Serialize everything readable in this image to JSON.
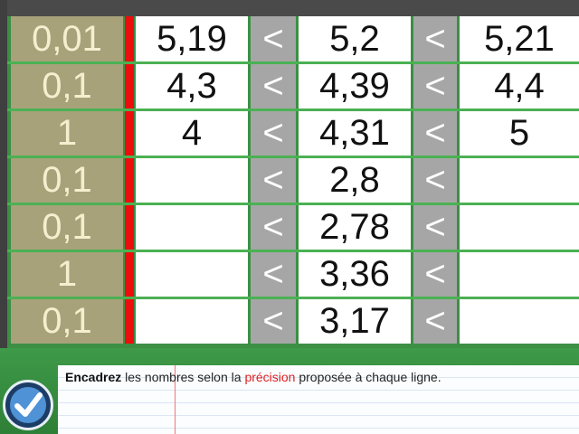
{
  "rows": [
    {
      "precision": "0,01",
      "left": "5,19",
      "less1": "<",
      "middle": "5,2",
      "less2": "<",
      "right": "5,21"
    },
    {
      "precision": "0,1",
      "left": "4,3",
      "less1": "<",
      "middle": "4,39",
      "less2": "<",
      "right": "4,4"
    },
    {
      "precision": "1",
      "left": "4",
      "less1": "<",
      "middle": "4,31",
      "less2": "<",
      "right": "5"
    },
    {
      "precision": "0,1",
      "left": "",
      "less1": "<",
      "middle": "2,8",
      "less2": "<",
      "right": ""
    },
    {
      "precision": "0,1",
      "left": "",
      "less1": "<",
      "middle": "2,78",
      "less2": "<",
      "right": ""
    },
    {
      "precision": "1",
      "left": "",
      "less1": "<",
      "middle": "3,36",
      "less2": "<",
      "right": ""
    },
    {
      "precision": "0,1",
      "left": "",
      "less1": "<",
      "middle": "3,17",
      "less2": "<",
      "right": ""
    }
  ],
  "instruction": {
    "bold": "Encadrez",
    "part1": " les nombres selon la ",
    "highlight": "précision",
    "part2": " proposée à chaque ligne."
  },
  "icons": {
    "validate": "check-icon"
  },
  "colors": {
    "accent_red": "#ee0d0d",
    "precision_bg": "#a8a27a",
    "board_green": "#3c8f45"
  }
}
